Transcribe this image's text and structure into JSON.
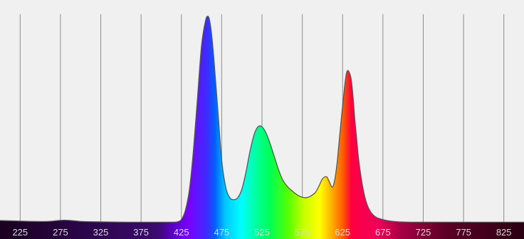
{
  "chart_data": {
    "type": "area",
    "title": "",
    "xlabel": "",
    "ylabel": "",
    "xlim": [
      200,
      850
    ],
    "ylim": [
      0,
      1
    ],
    "grid": "vertical",
    "x_tick_labels": [
      "225",
      "275",
      "325",
      "375",
      "425",
      "475",
      "525",
      "575",
      "625",
      "675",
      "725",
      "775",
      "825"
    ],
    "series": [
      {
        "x": [
          200,
          220,
          240,
          260,
          280,
          300,
          320,
          340,
          360,
          380,
          400,
          410,
          415,
          420,
          425,
          430,
          435,
          440,
          445,
          450,
          455,
          458,
          460,
          462,
          465,
          470,
          475,
          480,
          485,
          490,
          495,
          500,
          505,
          510,
          515,
          520,
          525,
          530,
          535,
          540,
          545,
          550,
          555,
          560,
          570,
          580,
          590,
          595,
          600,
          605,
          608,
          612,
          615,
          618,
          620,
          625,
          630,
          635,
          638,
          640,
          642,
          645,
          650,
          655,
          660,
          665,
          670,
          680,
          690,
          700,
          720,
          750,
          800,
          850
        ],
        "y": [
          0.01,
          0.008,
          0.006,
          0.006,
          0.012,
          0.006,
          0.004,
          0.003,
          0.002,
          0.002,
          0.002,
          0.002,
          0.002,
          0.004,
          0.015,
          0.06,
          0.16,
          0.35,
          0.6,
          0.85,
          0.97,
          0.99,
          0.97,
          0.92,
          0.8,
          0.55,
          0.3,
          0.17,
          0.12,
          0.11,
          0.12,
          0.16,
          0.24,
          0.34,
          0.42,
          0.46,
          0.46,
          0.43,
          0.38,
          0.32,
          0.26,
          0.21,
          0.18,
          0.16,
          0.13,
          0.12,
          0.14,
          0.17,
          0.21,
          0.22,
          0.2,
          0.17,
          0.2,
          0.28,
          0.36,
          0.56,
          0.72,
          0.7,
          0.6,
          0.5,
          0.42,
          0.3,
          0.17,
          0.09,
          0.05,
          0.03,
          0.02,
          0.01,
          0.005,
          0.003,
          0.002,
          0.002,
          0.002,
          0.002
        ]
      }
    ],
    "colors": {
      "background": "#f0f0f0",
      "gridline": "#8c8c8c",
      "curve": "#555555",
      "tick_label": "#d9d9d9"
    }
  }
}
